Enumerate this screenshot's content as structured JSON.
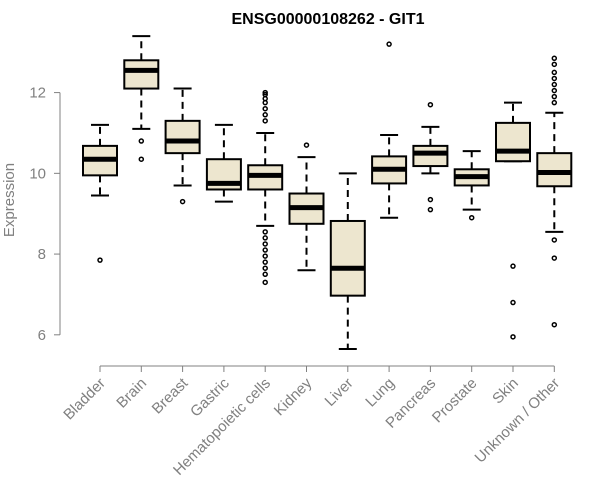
{
  "chart_data": {
    "type": "boxplot",
    "title": "ENSG00000108262 - GIT1",
    "xlabel": "",
    "ylabel": "Expression",
    "ylim": [
      5.5,
      13.6
    ],
    "yticks": [
      6,
      8,
      10,
      12
    ],
    "grid": false,
    "legend": "none",
    "colors": {
      "box_fill": "#ede6cf",
      "stroke": "#000000",
      "axis": "#808080",
      "title": "#000000"
    },
    "categories": [
      "Bladder",
      "Brain",
      "Breast",
      "Gastric",
      "Hematopoietic cells",
      "Kidney",
      "Liver",
      "Lung",
      "Pancreas",
      "Prostate",
      "Skin",
      "Unknown / Other"
    ],
    "boxes": [
      {
        "q1": 9.95,
        "median": 10.35,
        "q3": 10.68,
        "whisker_low": 9.45,
        "whisker_high": 11.2,
        "outliers": [
          7.85
        ]
      },
      {
        "q1": 12.1,
        "median": 12.55,
        "q3": 12.8,
        "whisker_low": 11.1,
        "whisker_high": 13.4,
        "outliers": [
          10.8,
          10.35
        ]
      },
      {
        "q1": 10.5,
        "median": 10.8,
        "q3": 11.3,
        "whisker_low": 9.7,
        "whisker_high": 12.1,
        "outliers": [
          9.3
        ]
      },
      {
        "q1": 9.6,
        "median": 9.75,
        "q3": 10.35,
        "whisker_low": 9.3,
        "whisker_high": 11.2,
        "outliers": []
      },
      {
        "q1": 9.6,
        "median": 9.95,
        "q3": 10.2,
        "whisker_low": 8.7,
        "whisker_high": 11.0,
        "outliers": [
          11.3,
          11.45,
          11.6,
          11.75,
          11.85,
          11.95,
          12.0,
          8.55,
          8.4,
          8.25,
          8.1,
          7.95,
          7.8,
          7.65,
          7.5,
          7.3
        ]
      },
      {
        "q1": 8.75,
        "median": 9.15,
        "q3": 9.5,
        "whisker_low": 7.6,
        "whisker_high": 10.4,
        "outliers": [
          10.7
        ]
      },
      {
        "q1": 6.97,
        "median": 7.65,
        "q3": 8.82,
        "whisker_low": 5.65,
        "whisker_high": 10.0,
        "outliers": []
      },
      {
        "q1": 9.75,
        "median": 10.1,
        "q3": 10.42,
        "whisker_low": 8.9,
        "whisker_high": 10.95,
        "outliers": [
          13.2
        ]
      },
      {
        "q1": 10.18,
        "median": 10.5,
        "q3": 10.68,
        "whisker_low": 10.0,
        "whisker_high": 11.15,
        "outliers": [
          11.7,
          9.35,
          9.1
        ]
      },
      {
        "q1": 9.7,
        "median": 9.92,
        "q3": 10.1,
        "whisker_low": 9.1,
        "whisker_high": 10.55,
        "outliers": [
          8.9
        ]
      },
      {
        "q1": 10.3,
        "median": 10.55,
        "q3": 11.25,
        "whisker_low": 10.3,
        "whisker_high": 11.75,
        "outliers": [
          7.7,
          6.8,
          5.95
        ]
      },
      {
        "q1": 9.68,
        "median": 10.02,
        "q3": 10.5,
        "whisker_low": 8.55,
        "whisker_high": 11.5,
        "outliers": [
          11.75,
          11.9,
          12.05,
          12.2,
          12.35,
          12.5,
          12.7,
          12.85,
          8.35,
          7.9,
          6.25
        ]
      }
    ]
  }
}
